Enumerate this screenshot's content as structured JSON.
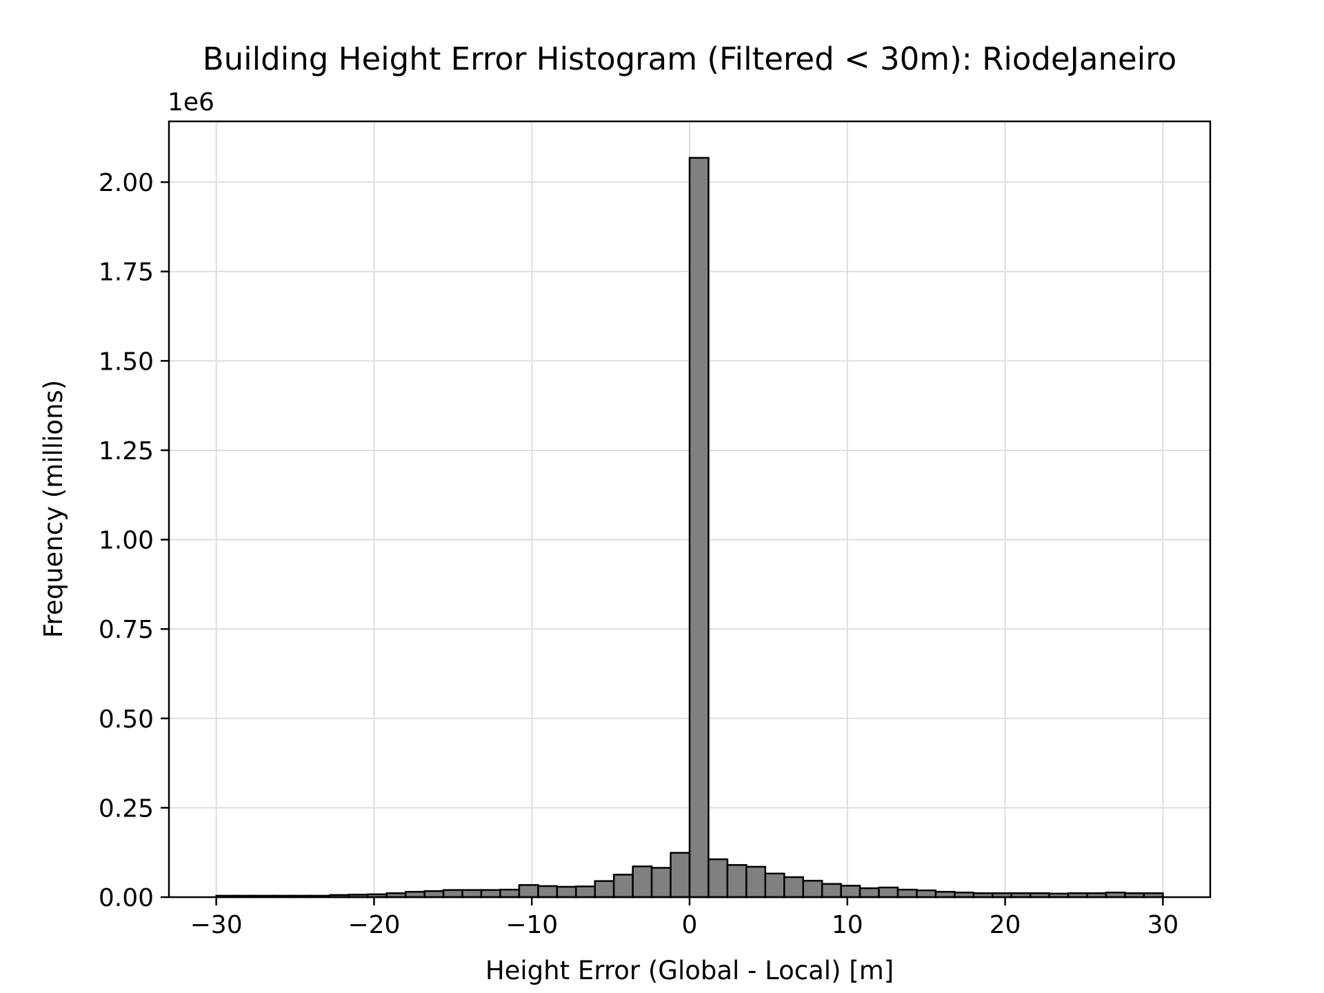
{
  "chart_data": {
    "type": "bar",
    "title": "Building Height Error Histogram (Filtered < 30m): RiodeJaneiro",
    "xlabel": "Height Error (Global - Local) [m]",
    "ylabel": "Frequency (millions)",
    "y_offset_text": "1e6",
    "xlim": [
      -33,
      33
    ],
    "ylim": [
      0,
      2170000
    ],
    "xticks": [
      -30,
      -20,
      -10,
      0,
      10,
      20,
      30
    ],
    "xtick_labels": [
      "−30",
      "−20",
      "−10",
      "0",
      "10",
      "20",
      "30"
    ],
    "yticks": [
      0,
      250000,
      500000,
      750000,
      1000000,
      1250000,
      1500000,
      1750000,
      2000000
    ],
    "ytick_labels": [
      "0.00",
      "0.25",
      "0.50",
      "0.75",
      "1.00",
      "1.25",
      "1.50",
      "1.75",
      "2.00"
    ],
    "grid": true,
    "bar_color": "#808080",
    "edge_color": "#000000",
    "bin_edges": [
      -30,
      -28.8,
      -27.6,
      -26.4,
      -25.2,
      -24,
      -22.8,
      -21.6,
      -20.4,
      -19.2,
      -18,
      -16.8,
      -15.6,
      -14.4,
      -13.2,
      -12,
      -10.8,
      -9.6,
      -8.4,
      -7.2,
      -6,
      -4.8,
      -3.6,
      -2.4,
      -1.2,
      0,
      1.2,
      2.4,
      3.6,
      4.8,
      6,
      7.2,
      8.4,
      9.6,
      10.8,
      12,
      13.2,
      14.4,
      15.6,
      16.8,
      18,
      19.2,
      20.4,
      21.6,
      22.8,
      24,
      25.2,
      26.4,
      27.6,
      28.8,
      30
    ],
    "counts": [
      4000,
      4000,
      4000,
      4000,
      4000,
      4000,
      6000,
      7000,
      8000,
      11000,
      15000,
      17000,
      20000,
      20000,
      20000,
      21000,
      34000,
      31000,
      29000,
      30000,
      45000,
      63000,
      86000,
      82000,
      124000,
      2068000,
      106000,
      90000,
      85000,
      66000,
      56000,
      46000,
      37000,
      32000,
      25000,
      27000,
      21000,
      19000,
      15000,
      13000,
      11000,
      11000,
      11000,
      11000,
      10000,
      11000,
      11000,
      13000,
      11000,
      11000
    ]
  }
}
